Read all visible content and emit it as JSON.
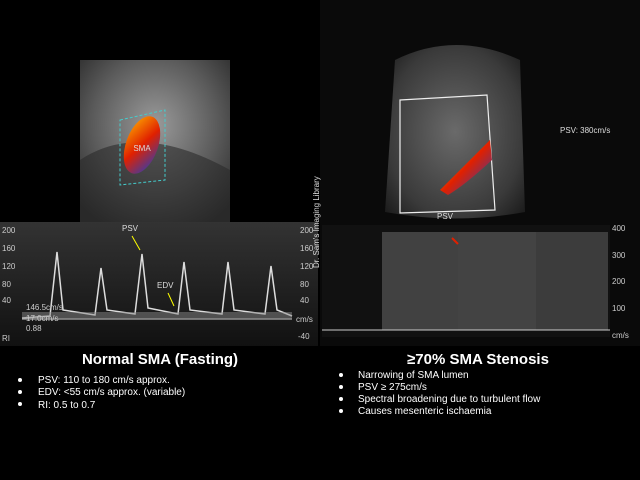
{
  "left_panel": {
    "image_label": "SMA",
    "psv_marker": "PSV",
    "edv_marker": "EDV",
    "scale_ticks": [
      "200",
      "160",
      "120",
      "80",
      "40",
      "-40"
    ],
    "scale_unit": "cm/s",
    "measurements": [
      "146.5cm/s",
      "17.0cm/s",
      "0.88",
      "RI"
    ],
    "heading": "Normal SMA (Fasting)",
    "bullets": [
      "PSV: 110 to 180 cm/s approx.",
      "EDV: <55 cm/s approx. (variable)",
      "RI: 0.5 to 0.7"
    ]
  },
  "right_panel": {
    "watermark": "Dr. Sam's Imaging Library",
    "psv_reading": "PSV: 380cm/s",
    "image_label": "PSV",
    "scale_ticks": [
      "400",
      "300",
      "200",
      "100"
    ],
    "scale_unit": "cm/s",
    "heading": "≥70% SMA Stenosis",
    "bullets": [
      "Narrowing of SMA lumen",
      "PSV ≥ 275cm/s",
      "Spectral broadening due to turbulent flow",
      "Causes mesenteric ischaemia"
    ]
  }
}
